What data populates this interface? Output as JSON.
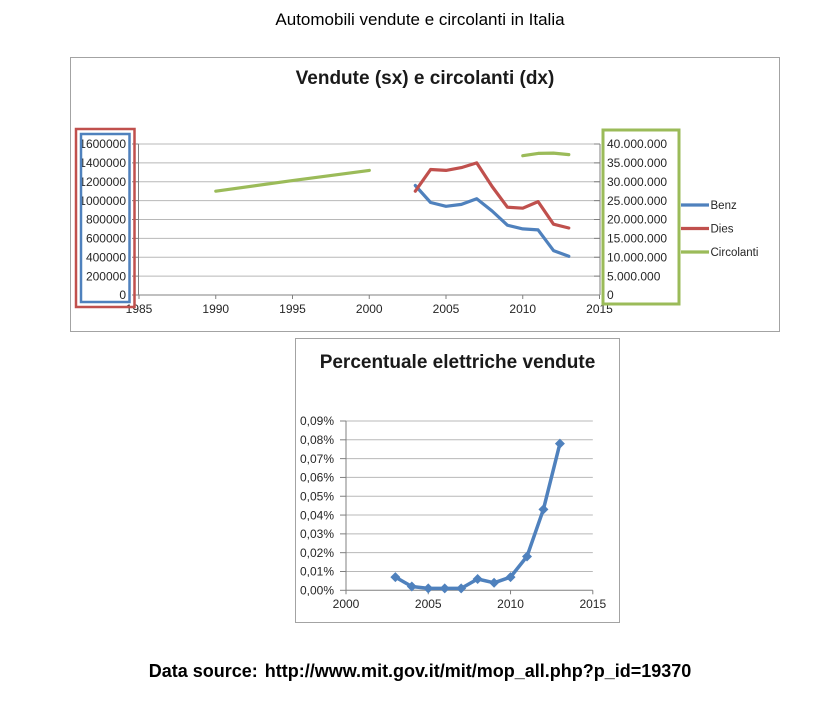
{
  "page_title": "Automobili vendute e circolanti in Italia",
  "source": {
    "prefix": "Data source:",
    "url": "http://www.mit.gov.it/mit/mop_all.php?p_id=19370"
  },
  "colors": {
    "benz_blue": "#4F81BD",
    "dies_red": "#C0504D",
    "circolanti_green": "#9BBB59",
    "gridline": "#B8B8B8",
    "axis": "#808080",
    "tick_label": "#262626",
    "frame_border": "#A3A3A3"
  },
  "chart_data": [
    {
      "type": "line",
      "title": "Vendute (sx) e circolanti (dx)",
      "x_axis": {
        "tick_labels": [
          "1985",
          "1990",
          "1995",
          "2000",
          "2005",
          "2010",
          "2015"
        ],
        "range": [
          1985,
          2015
        ]
      },
      "left_axis": {
        "tick_labels": [
          "1600000",
          "1400000",
          "1200000",
          "1000000",
          "800000",
          "600000",
          "400000",
          "200000",
          "0"
        ],
        "min": 0,
        "max": 1600000,
        "highlight_box": {
          "outer_color": "#C0504D",
          "inner_color": "#4F81BD"
        }
      },
      "right_axis": {
        "tick_labels": [
          "40.000.000",
          "35.000.000",
          "30.000.000",
          "25.000.000",
          "20.000.000",
          "15.000.000",
          "10.000.000",
          "5.000.000",
          "0"
        ],
        "min": 0,
        "max": 40000000,
        "highlight_box": {
          "color": "#9BBB59"
        }
      },
      "legend": [
        {
          "label": "Benz",
          "color": "#4F81BD"
        },
        {
          "label": "Dies",
          "color": "#C0504D"
        },
        {
          "label": "Circolanti",
          "color": "#9BBB59"
        }
      ],
      "series": [
        {
          "name": "Benz",
          "axis": "left",
          "color": "#4F81BD",
          "segments": [
            [
              [
                2003,
                1160000
              ],
              [
                2004,
                980000
              ],
              [
                2005,
                940000
              ],
              [
                2006,
                960000
              ],
              [
                2007,
                1020000
              ],
              [
                2008,
                890000
              ],
              [
                2009,
                740000
              ],
              [
                2010,
                700000
              ],
              [
                2011,
                690000
              ],
              [
                2012,
                470000
              ],
              [
                2013,
                410000
              ]
            ]
          ]
        },
        {
          "name": "Dies",
          "axis": "left",
          "color": "#C0504D",
          "segments": [
            [
              [
                2003,
                1100000
              ],
              [
                2004,
                1330000
              ],
              [
                2005,
                1320000
              ],
              [
                2006,
                1350000
              ],
              [
                2007,
                1400000
              ],
              [
                2008,
                1150000
              ],
              [
                2009,
                930000
              ],
              [
                2010,
                920000
              ],
              [
                2011,
                990000
              ],
              [
                2012,
                750000
              ],
              [
                2013,
                710000
              ]
            ]
          ]
        },
        {
          "name": "Circolanti",
          "axis": "right",
          "color": "#9BBB59",
          "segments": [
            [
              [
                1990,
                27500000
              ],
              [
                1995,
                30300000
              ],
              [
                2000,
                33000000
              ]
            ],
            [
              [
                2010,
                36900000
              ],
              [
                2011,
                37500000
              ],
              [
                2012,
                37600000
              ],
              [
                2013,
                37200000
              ]
            ]
          ]
        }
      ]
    },
    {
      "type": "line",
      "title": "Percentuale elettriche vendute",
      "x_axis": {
        "tick_labels": [
          "2000",
          "2005",
          "2010",
          "2015"
        ],
        "range": [
          2000,
          2015
        ]
      },
      "y_axis": {
        "tick_labels": [
          "0,09%",
          "0,08%",
          "0,07%",
          "0,06%",
          "0,05%",
          "0,04%",
          "0,03%",
          "0,02%",
          "0,01%",
          "0,00%"
        ],
        "min_percent": 0,
        "max_percent": 0.09
      },
      "series": [
        {
          "name": "Percentuale elettriche vendute",
          "color": "#4F81BD",
          "marker": "diamond",
          "points_percent": [
            [
              2003,
              0.007
            ],
            [
              2004,
              0.002
            ],
            [
              2005,
              0.001
            ],
            [
              2006,
              0.001
            ],
            [
              2007,
              0.001
            ],
            [
              2008,
              0.006
            ],
            [
              2009,
              0.004
            ],
            [
              2010,
              0.007
            ],
            [
              2011,
              0.018
            ],
            [
              2012,
              0.043
            ],
            [
              2013,
              0.078
            ]
          ]
        }
      ]
    }
  ]
}
